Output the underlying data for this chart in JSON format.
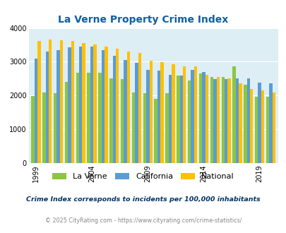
{
  "title": "La Verne Property Crime Index",
  "years": [
    1999,
    2000,
    2001,
    2002,
    2003,
    2004,
    2005,
    2006,
    2007,
    2008,
    2009,
    2010,
    2011,
    2012,
    2013,
    2014,
    2015,
    2016,
    2017,
    2018,
    2019,
    2020
  ],
  "la_verne": [
    1980,
    2080,
    2070,
    2400,
    2680,
    2680,
    2680,
    2500,
    2490,
    2080,
    2060,
    1900,
    2070,
    2590,
    2440,
    2650,
    2540,
    2550,
    2860,
    2330,
    1960,
    1970
  ],
  "california": [
    3100,
    3310,
    3340,
    3420,
    3440,
    3440,
    3340,
    3170,
    3050,
    2960,
    2750,
    2740,
    2620,
    2590,
    2760,
    2690,
    2480,
    2490,
    2500,
    2500,
    2380,
    2370
  ],
  "national": [
    3620,
    3660,
    3640,
    3620,
    3560,
    3520,
    3450,
    3380,
    3310,
    3270,
    3040,
    2990,
    2930,
    2860,
    2870,
    2620,
    2540,
    2500,
    2360,
    2200,
    2160,
    2080
  ],
  "bar_color_laverne": "#8dc63f",
  "bar_color_california": "#5b9bd5",
  "bar_color_national": "#ffc000",
  "bg_color": "#ddeef5",
  "fig_bg": "#ffffff",
  "ylim": [
    0,
    4000
  ],
  "yticks": [
    0,
    1000,
    2000,
    3000,
    4000
  ],
  "xtick_years": [
    1999,
    2004,
    2009,
    2014,
    2019
  ],
  "legend_labels": [
    "La Verne",
    "California",
    "National"
  ],
  "title_color": "#1060a0",
  "footnote1": "Crime Index corresponds to incidents per 100,000 inhabitants",
  "footnote2": "© 2025 CityRating.com - https://www.cityrating.com/crime-statistics/",
  "footnote1_color": "#003366",
  "footnote2_color": "#888888"
}
